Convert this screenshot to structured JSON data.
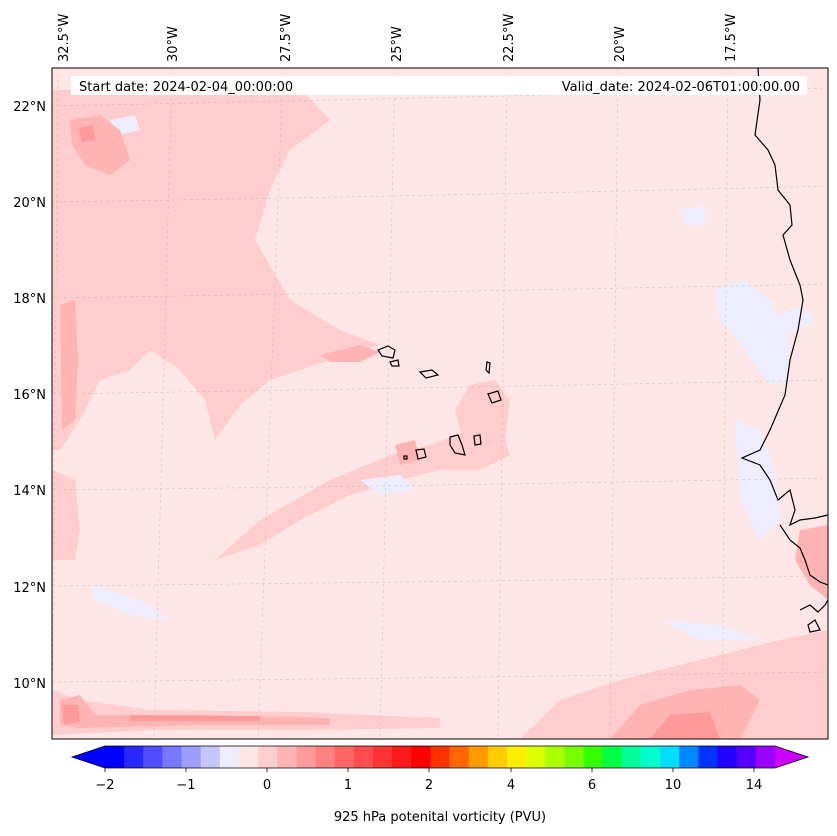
{
  "map": {
    "start_label": "Start date: 2024-02-04_00:00:00",
    "valid_label": "Valid_date: 2024-02-06T01:00:00.00",
    "lon_labels": [
      "32.5°W",
      "30°W",
      "27.5°W",
      "25°W",
      "22.5°W",
      "20°W",
      "17.5°W"
    ],
    "lat_labels": [
      "22°N",
      "20°N",
      "18°N",
      "16°N",
      "14°N",
      "12°N",
      "10°N"
    ],
    "extent": {
      "lon_min": -32.5,
      "lon_max": -15.0,
      "lat_min": 9.0,
      "lat_max": 22.8
    },
    "gridlines": true
  },
  "colorbar": {
    "label": "925 hPa potenital vorticity (PVU)",
    "tick_labels": [
      "−2",
      "−1",
      "0",
      "1",
      "2",
      "4",
      "6",
      "10",
      "14"
    ],
    "colors": [
      "#0000ff",
      "#2828ff",
      "#4f4fff",
      "#7777ff",
      "#9e9eff",
      "#c6c6ff",
      "#ededff",
      "#ffe6e6",
      "#ffcdcd",
      "#ffb3b3",
      "#ff9a9a",
      "#ff8080",
      "#ff6767",
      "#ff4d4d",
      "#ff3434",
      "#ff1a1a",
      "#ff0000",
      "#ff3300",
      "#ff6600",
      "#ff9900",
      "#ffcc00",
      "#ffee00",
      "#ddff00",
      "#aaff00",
      "#77ff00",
      "#33ff00",
      "#00ff44",
      "#00ff99",
      "#00ffcc",
      "#00ddff",
      "#0088ff",
      "#0033ff",
      "#2200ff",
      "#5500ff",
      "#9900ff"
    ],
    "extend_low": "#0000ff",
    "extend_high": "#cc00ff"
  },
  "colors": {
    "background_field": "#ffe6e6",
    "level_1": "#ffcdcd",
    "level_2": "#ffb3b3",
    "level_3": "#ff9a9a",
    "negative": "#ededff",
    "coast": "#000000"
  }
}
